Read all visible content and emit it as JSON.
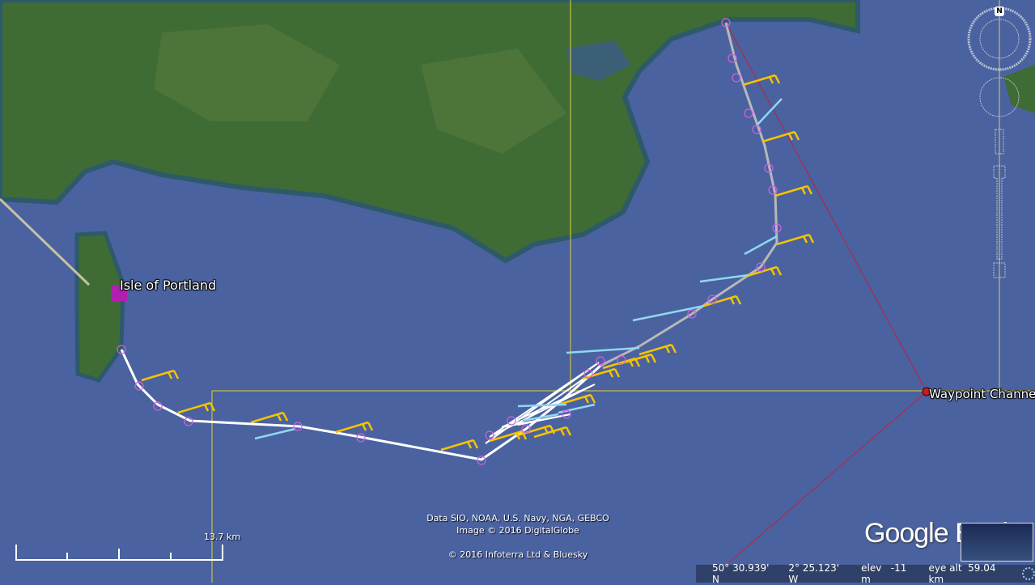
{
  "map": {
    "placemarks": [
      {
        "name": "Isle of Portland",
        "icon": "purple-square-placemark-icon"
      },
      {
        "name": "Waypoint Channel",
        "icon": "red-circle-placemark-icon"
      }
    ],
    "attribution": [
      "Data SIO, NOAA, U.S. Navy, NGA, GEBCO",
      "Image © 2016 DigitalGlobe",
      "© 2016 Infoterra Ltd & Bluesky"
    ],
    "scale": "13.7 km",
    "logo": "Google Earth",
    "north_label": "N",
    "colors": {
      "sea": "#4a62a0",
      "land": "#3e6a35",
      "track": "#ffffff",
      "track_gray": "#b8b8b8",
      "wind_barb": "#f5c400",
      "current_arrow": "#8fd8f0",
      "grid": "#c8c040",
      "route": "#c0203a",
      "point": "#d060e0"
    }
  },
  "status": {
    "lat": "50° 30.939' N",
    "lon": "2° 25.123' W",
    "elev_label": "elev",
    "elev": "-11 m",
    "eye_alt_label": "eye alt",
    "eye_alt": "59.04 km"
  }
}
